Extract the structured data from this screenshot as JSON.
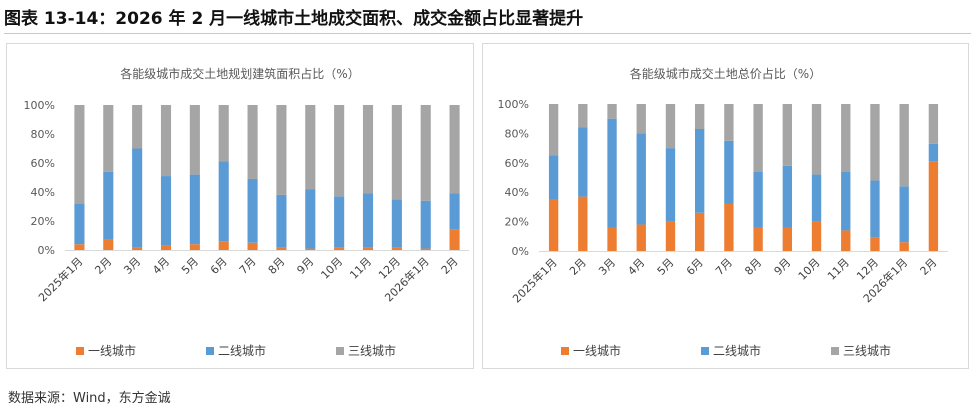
{
  "figure_title": "图表 13-14：2026 年 2 月一线城市土地成交面积、成交金额占比显著提升",
  "source": "数据来源：Wind，东方金诚",
  "colors": {
    "tier1": "#ED7D31",
    "tier2": "#5B9BD5",
    "tier3": "#A5A5A5"
  },
  "chart_data": [
    {
      "type": "bar",
      "stacked": true,
      "title": "各能级城市成交土地规划建筑面积占比（%）",
      "categories": [
        "2025年1月",
        "2月",
        "3月",
        "4月",
        "5月",
        "6月",
        "7月",
        "8月",
        "9月",
        "10月",
        "11月",
        "12月",
        "2026年1月",
        "2月"
      ],
      "series": [
        {
          "name": "一线城市",
          "values": [
            4,
            7,
            2,
            3,
            4,
            6,
            5,
            2,
            1,
            2,
            2,
            2,
            1,
            14
          ]
        },
        {
          "name": "二线城市",
          "values": [
            28,
            47,
            68,
            48,
            48,
            55,
            44,
            36,
            41,
            35,
            37,
            33,
            33,
            25
          ]
        },
        {
          "name": "三线城市",
          "values": [
            68,
            46,
            30,
            49,
            48,
            39,
            51,
            62,
            58,
            63,
            61,
            65,
            66,
            61
          ]
        }
      ],
      "ylim": [
        0,
        100
      ],
      "yticks": [
        "0%",
        "20%",
        "40%",
        "60%",
        "80%",
        "100%"
      ],
      "legend_position": "bottom",
      "grid": false
    },
    {
      "type": "bar",
      "stacked": true,
      "title": "各能级城市成交土地总价占比（%）",
      "categories": [
        "2025年1月",
        "2月",
        "3月",
        "4月",
        "5月",
        "6月",
        "7月",
        "8月",
        "9月",
        "10月",
        "11月",
        "12月",
        "2026年1月",
        "2月"
      ],
      "series": [
        {
          "name": "一线城市",
          "values": [
            35,
            37,
            16,
            18,
            20,
            26,
            32,
            16,
            16,
            20,
            14,
            9,
            6,
            61
          ]
        },
        {
          "name": "二线城市",
          "values": [
            30,
            47,
            74,
            62,
            50,
            57,
            43,
            38,
            42,
            32,
            40,
            39,
            38,
            12
          ]
        },
        {
          "name": "三线城市",
          "values": [
            35,
            16,
            10,
            20,
            30,
            17,
            25,
            46,
            42,
            48,
            46,
            52,
            56,
            27
          ]
        }
      ],
      "ylim": [
        0,
        100
      ],
      "yticks": [
        "0%",
        "20%",
        "40%",
        "60%",
        "80%",
        "100%"
      ],
      "legend_position": "bottom",
      "grid": false
    }
  ]
}
